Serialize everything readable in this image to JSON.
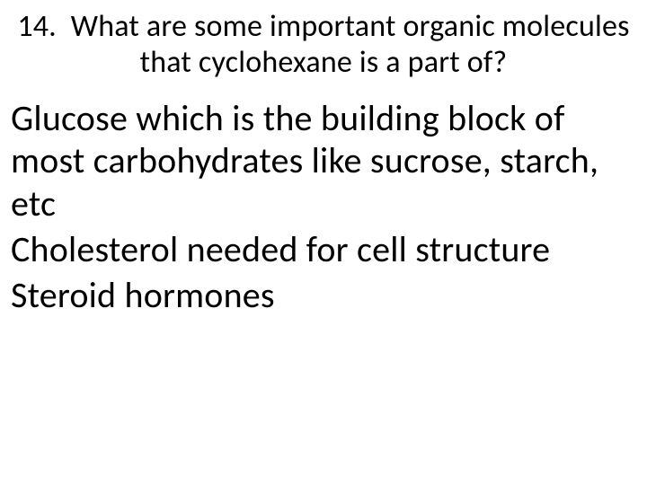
{
  "question": {
    "number": "14.",
    "text": "What are some important organic molecules that cyclohexane is a part of?"
  },
  "answers": [
    "Glucose which is the building block of most carbohydrates like sucrose, starch, etc",
    "Cholesterol needed for cell structure",
    "Steroid hormones"
  ],
  "styling": {
    "background_color": "#ffffff",
    "text_color": "#000000",
    "question_fontsize": 34,
    "answer_fontsize": 40,
    "font_family": "Calibri"
  }
}
